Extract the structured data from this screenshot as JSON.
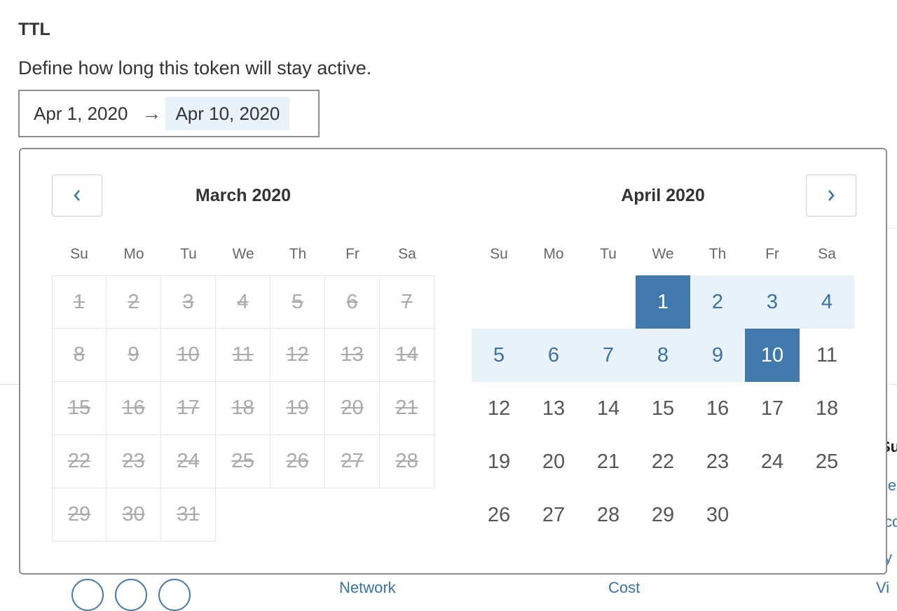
{
  "ttl": {
    "title": "TTL",
    "description": "Define how long this token will stay active.",
    "start": "Apr 1, 2020",
    "end": "Apr 10, 2020"
  },
  "calendar": {
    "weekdays": [
      "Su",
      "Mo",
      "Tu",
      "We",
      "Th",
      "Fr",
      "Sa"
    ],
    "months": [
      {
        "name": "March 2020",
        "disabled": true,
        "rows": [
          [
            1,
            2,
            3,
            4,
            5,
            6,
            7
          ],
          [
            8,
            9,
            10,
            11,
            12,
            13,
            14
          ],
          [
            15,
            16,
            17,
            18,
            19,
            20,
            21
          ],
          [
            22,
            23,
            24,
            25,
            26,
            27,
            28
          ],
          [
            29,
            30,
            31,
            null,
            null,
            null,
            null
          ]
        ]
      },
      {
        "name": "April 2020",
        "disabled": false,
        "rows": [
          [
            null,
            null,
            null,
            1,
            2,
            3,
            4
          ],
          [
            5,
            6,
            7,
            8,
            9,
            10,
            11
          ],
          [
            12,
            13,
            14,
            15,
            16,
            17,
            18
          ],
          [
            19,
            20,
            21,
            22,
            23,
            24,
            25
          ],
          [
            26,
            27,
            28,
            29,
            30,
            null,
            null
          ]
        ]
      }
    ],
    "range_start": 1,
    "range_end": 10,
    "colors": {
      "selected": "#4279ad",
      "in_range": "#eaf2f9",
      "accent": "#3a72a6"
    }
  },
  "background": {
    "heading_fragment": "Su",
    "link_fragments": [
      "le",
      "co",
      "y"
    ],
    "bottom_labels": [
      "Network",
      "Cost",
      "Vi"
    ]
  }
}
